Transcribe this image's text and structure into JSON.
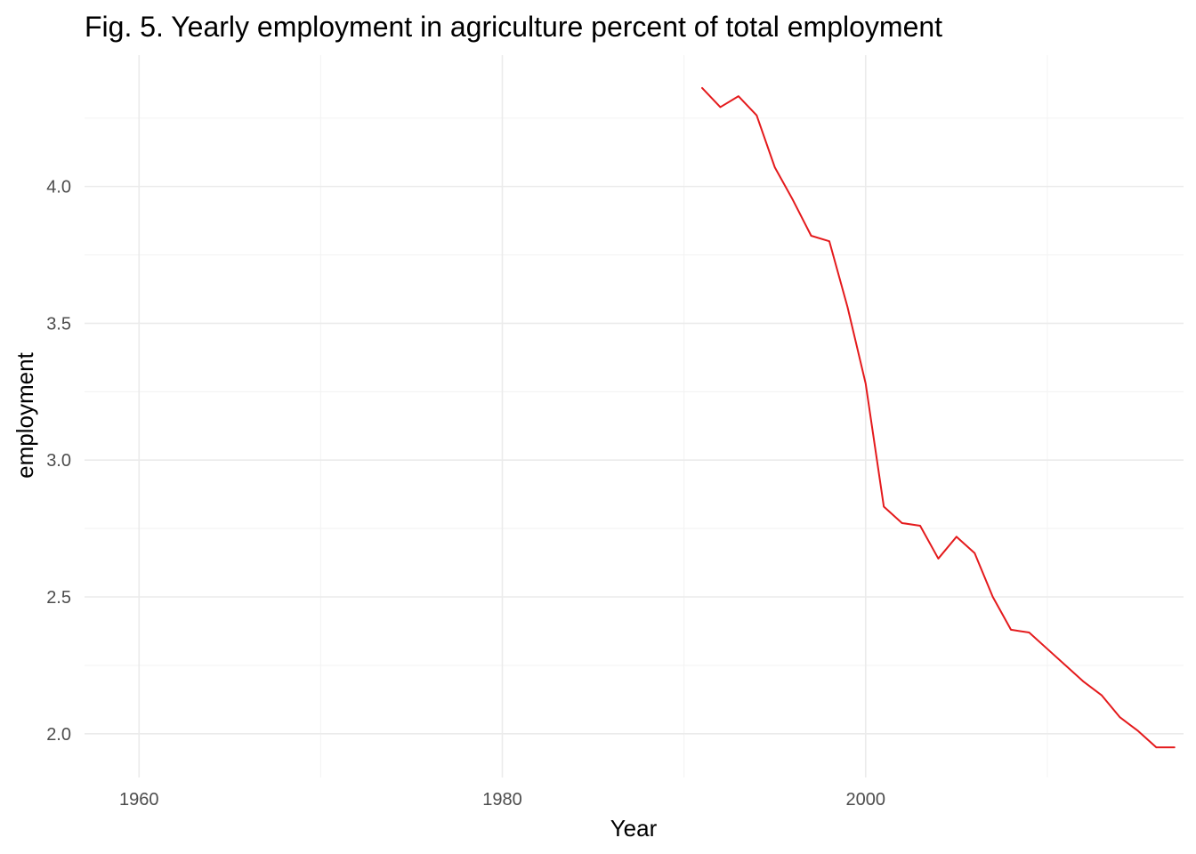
{
  "chart_data": {
    "type": "line",
    "title": "Fig. 5. Yearly employment in agriculture percent of total employment",
    "xlabel": "Year",
    "ylabel": "employment",
    "xlim": [
      1957,
      2017.5
    ],
    "ylim": [
      1.84,
      4.48
    ],
    "x_ticks": [
      1960,
      1980,
      2000
    ],
    "x_tick_labels": [
      "1960",
      "1980",
      "2000"
    ],
    "x_minor_ticks": [
      1970,
      1990,
      2010
    ],
    "y_ticks": [
      2.0,
      2.5,
      3.0,
      3.5,
      4.0
    ],
    "y_tick_labels": [
      "2.0",
      "2.5",
      "3.0",
      "3.5",
      "4.0"
    ],
    "y_minor_ticks": [
      2.25,
      2.75,
      3.25,
      3.75,
      4.25
    ],
    "grid": true,
    "legend": "none",
    "series": [
      {
        "color": "#e41a1c",
        "x": [
          1991,
          1992,
          1993,
          1994,
          1995,
          1996,
          1997,
          1998,
          1999,
          2000,
          2001,
          2002,
          2003,
          2004,
          2005,
          2006,
          2007,
          2008,
          2009,
          2010,
          2011,
          2012,
          2013,
          2014,
          2015,
          2016,
          2017
        ],
        "values": [
          4.36,
          4.29,
          4.33,
          4.26,
          4.07,
          3.95,
          3.82,
          3.8,
          3.56,
          3.28,
          2.83,
          2.77,
          2.76,
          2.64,
          2.72,
          2.66,
          2.5,
          2.38,
          2.37,
          2.31,
          2.25,
          2.19,
          2.14,
          2.06,
          2.01,
          1.95,
          1.95
        ]
      }
    ]
  }
}
